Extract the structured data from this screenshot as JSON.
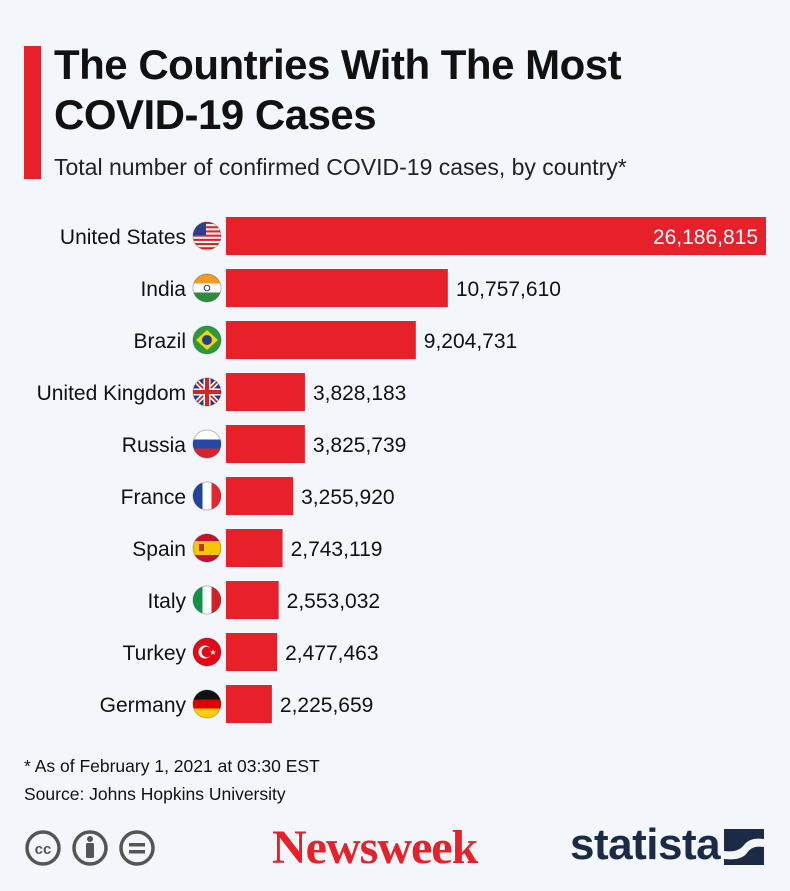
{
  "header": {
    "title": "The Countries With The Most COVID-19 Cases",
    "subtitle": "Total number of confirmed COVID-19 cases, by country*"
  },
  "colors": {
    "accent": "#e8202a",
    "background": "#f3f6fa",
    "text": "#111111"
  },
  "chart_data": {
    "type": "bar",
    "orientation": "horizontal",
    "title": "The Countries With The Most COVID-19 Cases",
    "subtitle": "Total number of confirmed COVID-19 cases, by country*",
    "categories": [
      "United States",
      "India",
      "Brazil",
      "United Kingdom",
      "Russia",
      "France",
      "Spain",
      "Italy",
      "Turkey",
      "Germany"
    ],
    "values": [
      26186815,
      10757610,
      9204731,
      3828183,
      3825739,
      3255920,
      2743119,
      2553032,
      2477463,
      2225659
    ],
    "value_labels": [
      "26,186,815",
      "10,757,610",
      "9,204,731",
      "3,828,183",
      "3,825,739",
      "3,255,920",
      "2,743,119",
      "2,553,032",
      "2,477,463",
      "2,225,659"
    ],
    "flags": [
      "us-flag-icon",
      "india-flag-icon",
      "brazil-flag-icon",
      "uk-flag-icon",
      "russia-flag-icon",
      "france-flag-icon",
      "spain-flag-icon",
      "italy-flag-icon",
      "turkey-flag-icon",
      "germany-flag-icon"
    ],
    "bar_color": "#e8202a",
    "grid": false,
    "legend": "none"
  },
  "footer": {
    "note": "* As of February 1, 2021 at 03:30 EST",
    "source": "Source: Johns Hopkins University",
    "brand_left": "Newsweek",
    "brand_right": "statista",
    "license_icons": [
      "cc-icon",
      "attribution-icon",
      "no-derivatives-icon"
    ]
  }
}
